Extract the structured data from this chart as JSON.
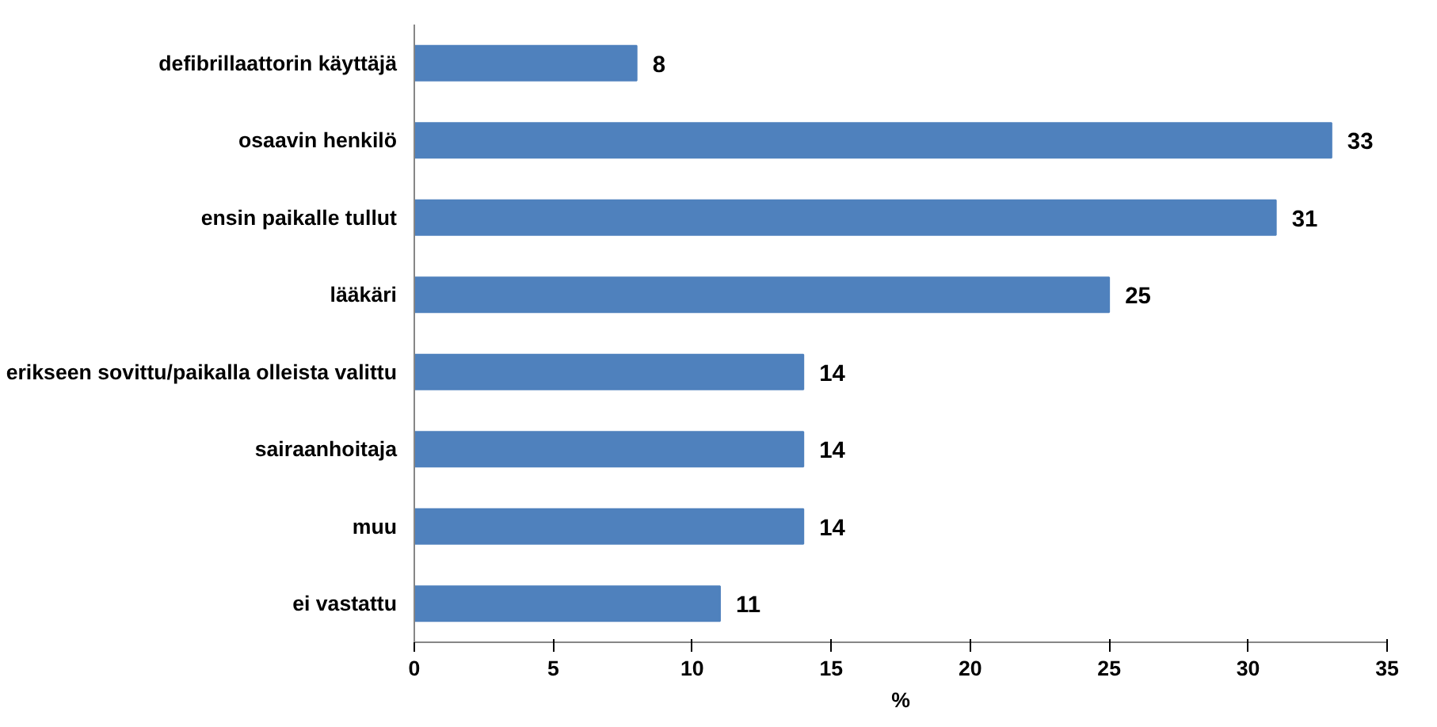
{
  "chart_data": {
    "type": "bar",
    "orientation": "horizontal",
    "categories": [
      "defibrillaattorin käyttäjä",
      "osaavin henkilö",
      "ensin paikalle tullut",
      "lääkäri",
      "erikseen sovittu/paikalla olleista valittu",
      "sairaanhoitaja",
      "muu",
      "ei vastattu"
    ],
    "values": [
      8,
      33,
      31,
      25,
      14,
      14,
      14,
      11
    ],
    "color": "#4f81bd",
    "data_labels": true,
    "xlabel": "%",
    "xlim": [
      0,
      35
    ],
    "xticks": [
      0,
      5,
      10,
      15,
      20,
      25,
      30,
      35
    ],
    "grid": false
  }
}
